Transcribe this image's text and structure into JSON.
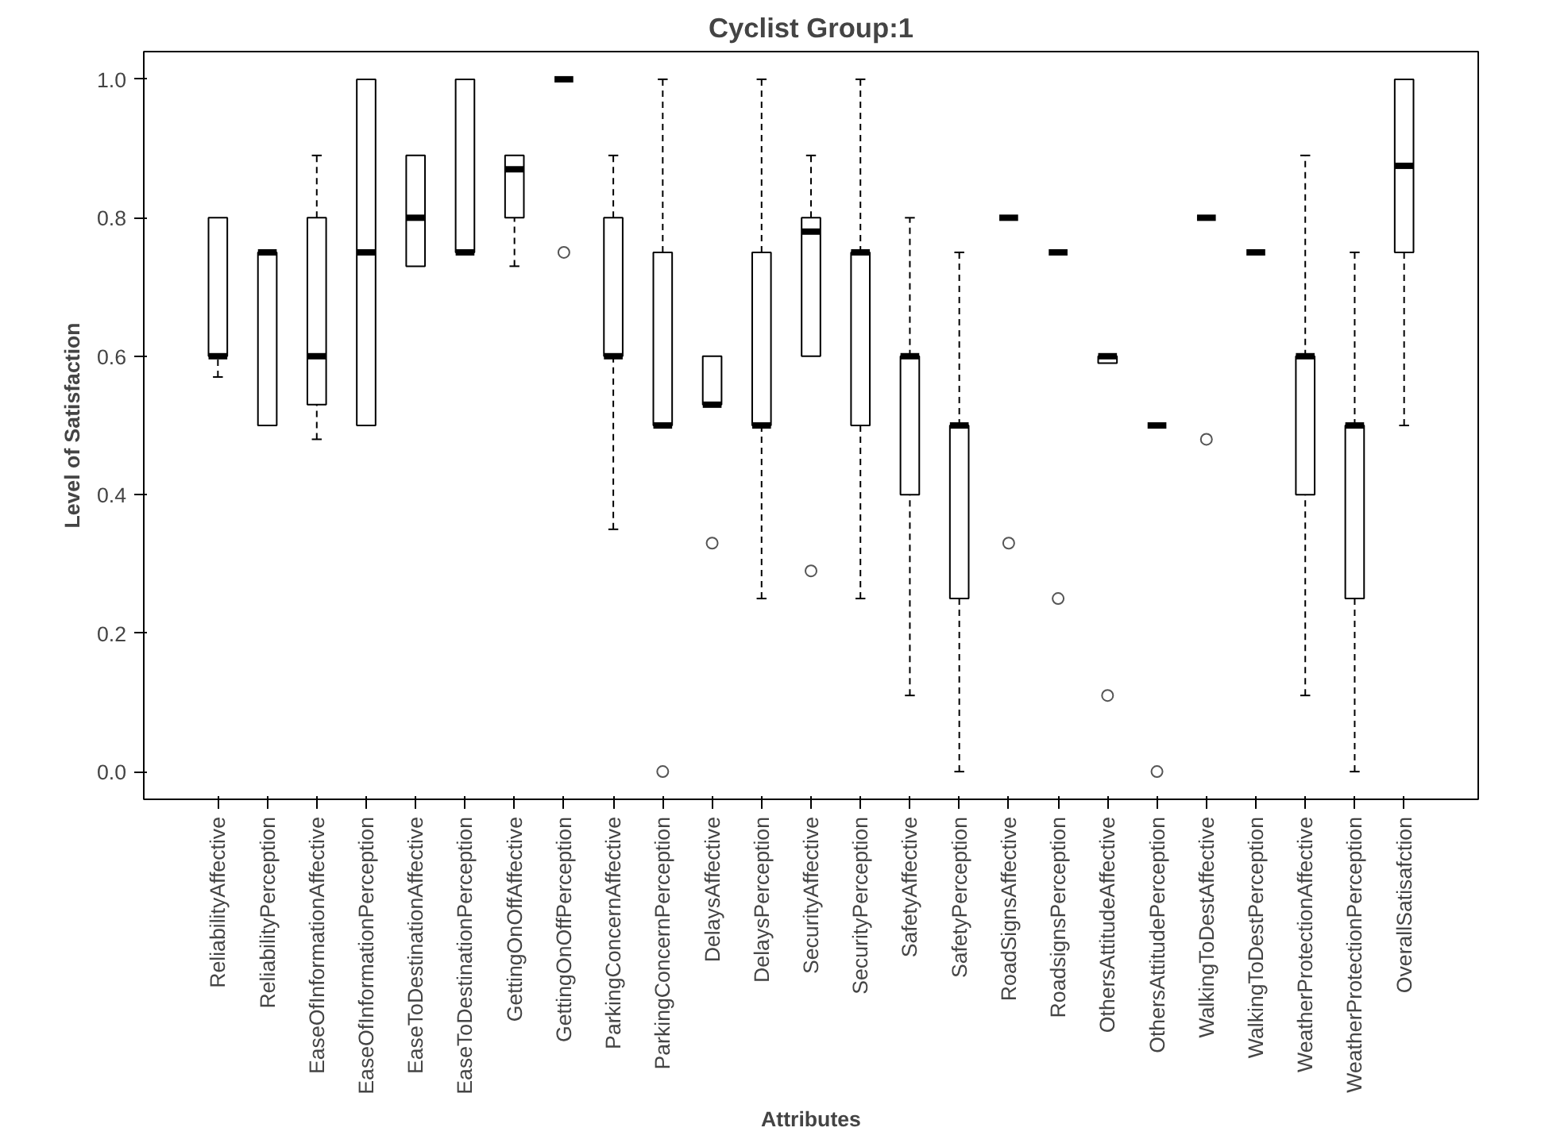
{
  "chart_data": {
    "type": "box",
    "title": "Cyclist Group:1",
    "xlabel": "Attributes",
    "ylabel": "Level of Satisfaction",
    "categories": [
      "ReliabilityAffective",
      "ReliabilityPerception",
      "EaseOfInformationAffective",
      "EaseOfInformationPerception",
      "EaseToDestinationAffective",
      "EaseToDestinationPerception",
      "GettingOnOffAffective",
      "GettingOnOffPerception",
      "ParkingConcernAffective",
      "ParkingConcernPerception",
      "DelaysAffective",
      "DelaysPerception",
      "SecurityAffective",
      "SecurityPerception",
      "SafetyAffective",
      "SafetyPerception",
      "RoadSignsAffective",
      "RoadsignsPerception",
      "OthersAttitudeAffective",
      "OthersAttitudePerception",
      "WalkingToDestAffective",
      "WalkingToDestPerception",
      "WeatherProtectionAffective",
      "WeatherProtectionPerception",
      "OverallSatisafction"
    ],
    "boxes": [
      {
        "low": 0.57,
        "q1": 0.6,
        "median": 0.6,
        "q3": 0.8,
        "high": 0.8
      },
      {
        "low": 0.5,
        "q1": 0.5,
        "median": 0.75,
        "q3": 0.75,
        "high": 0.75
      },
      {
        "low": 0.48,
        "q1": 0.53,
        "median": 0.6,
        "q3": 0.8,
        "high": 0.89
      },
      {
        "low": 0.5,
        "q1": 0.5,
        "median": 0.75,
        "q3": 1.0,
        "high": 1.0
      },
      {
        "low": 0.73,
        "q1": 0.73,
        "median": 0.8,
        "q3": 0.89,
        "high": 0.89
      },
      {
        "low": 0.75,
        "q1": 0.75,
        "median": 0.75,
        "q3": 1.0,
        "high": 1.0
      },
      {
        "low": 0.73,
        "q1": 0.8,
        "median": 0.87,
        "q3": 0.89,
        "high": 0.89
      },
      {
        "low": 1.0,
        "q1": 1.0,
        "median": 1.0,
        "q3": 1.0,
        "high": 1.0,
        "outliers": [
          0.75
        ]
      },
      {
        "low": 0.35,
        "q1": 0.6,
        "median": 0.6,
        "q3": 0.8,
        "high": 0.89
      },
      {
        "low": 0.5,
        "q1": 0.5,
        "median": 0.5,
        "q3": 0.75,
        "high": 1.0,
        "outliers": [
          0.0
        ]
      },
      {
        "low": 0.53,
        "q1": 0.53,
        "median": 0.53,
        "q3": 0.6,
        "high": 0.6,
        "outliers": [
          0.33
        ]
      },
      {
        "low": 0.25,
        "q1": 0.5,
        "median": 0.5,
        "q3": 0.75,
        "high": 1.0
      },
      {
        "low": 0.6,
        "q1": 0.6,
        "median": 0.78,
        "q3": 0.8,
        "high": 0.89,
        "outliers": [
          0.29
        ]
      },
      {
        "low": 0.25,
        "q1": 0.5,
        "median": 0.75,
        "q3": 0.75,
        "high": 1.0
      },
      {
        "low": 0.11,
        "q1": 0.4,
        "median": 0.6,
        "q3": 0.6,
        "high": 0.8
      },
      {
        "low": 0.0,
        "q1": 0.25,
        "median": 0.5,
        "q3": 0.5,
        "high": 0.75
      },
      {
        "low": 0.8,
        "q1": 0.8,
        "median": 0.8,
        "q3": 0.8,
        "high": 0.8,
        "outliers": [
          0.33
        ]
      },
      {
        "low": 0.75,
        "q1": 0.75,
        "median": 0.75,
        "q3": 0.75,
        "high": 0.75,
        "outliers": [
          0.25
        ]
      },
      {
        "low": 0.59,
        "q1": 0.59,
        "median": 0.6,
        "q3": 0.6,
        "high": 0.6,
        "outliers": [
          0.11
        ]
      },
      {
        "low": 0.5,
        "q1": 0.5,
        "median": 0.5,
        "q3": 0.5,
        "high": 0.5,
        "outliers": [
          0.0
        ]
      },
      {
        "low": 0.8,
        "q1": 0.8,
        "median": 0.8,
        "q3": 0.8,
        "high": 0.8,
        "outliers": [
          0.48
        ]
      },
      {
        "low": 0.75,
        "q1": 0.75,
        "median": 0.75,
        "q3": 0.75,
        "high": 0.75
      },
      {
        "low": 0.11,
        "q1": 0.4,
        "median": 0.6,
        "q3": 0.6,
        "high": 0.89
      },
      {
        "low": 0.0,
        "q1": 0.25,
        "median": 0.5,
        "q3": 0.5,
        "high": 0.75
      },
      {
        "low": 0.5,
        "q1": 0.75,
        "median": 0.875,
        "q3": 1.0,
        "high": 1.0
      }
    ],
    "ylim": [
      -0.04,
      1.04
    ],
    "yticks": [
      {
        "value": 0,
        "label": "0.0"
      },
      0.2,
      0.4,
      0.6,
      0.8,
      {
        "value": 1,
        "label": "1.0"
      }
    ],
    "grid": false
  }
}
